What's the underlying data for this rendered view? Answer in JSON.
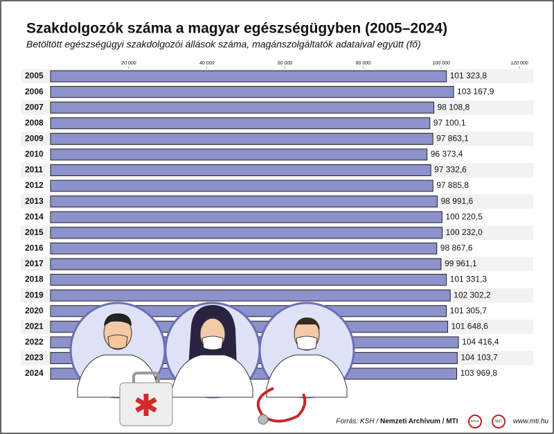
{
  "chart_data": {
    "type": "bar",
    "orientation": "horizontal",
    "title": "Szakdolgozók száma a magyar egészségügyben (2005–2024)",
    "subtitle": "Betöltött egészségügyi szakdolgozói állások száma, magánszolgáltatók adataival együtt (fő)",
    "categories": [
      "2005",
      "2006",
      "2007",
      "2008",
      "2009",
      "2010",
      "2011",
      "2012",
      "2013",
      "2014",
      "2015",
      "2016",
      "2017",
      "2018",
      "2019",
      "2020",
      "2021",
      "2022",
      "2023",
      "2024"
    ],
    "values": [
      101323.8,
      103167.9,
      98108.8,
      97100.1,
      97863.1,
      96373.4,
      97332.6,
      97885.8,
      98991.6,
      100220.5,
      100232.0,
      98867.6,
      99961.1,
      101331.3,
      102302.2,
      101305.7,
      101648.6,
      104416.4,
      104103.7,
      103969.8
    ],
    "value_labels": [
      "101 323,8",
      "103 167,9",
      "98 108,8",
      "97 100,1",
      "97 863,1",
      "96 373,4",
      "97 332,6",
      "97 885,8",
      "98 991,6",
      "100 220,5",
      "100 232,0",
      "98 867,6",
      "99 961,1",
      "101 331,3",
      "102 302,2",
      "101 305,7",
      "101 648,6",
      "104 416,4",
      "104 103,7",
      "103 969,8"
    ],
    "color": "#8d91cc",
    "xlim": [
      0,
      120000
    ],
    "xticks": [
      {
        "value": 20000,
        "label": "20 000"
      },
      {
        "value": 40000,
        "label": "40 000"
      },
      {
        "value": 60000,
        "label": "60 000"
      },
      {
        "value": 80000,
        "label": "80 000"
      },
      {
        "value": 100000,
        "label": "100 000"
      },
      {
        "value": 120000,
        "label": "120 000"
      }
    ],
    "grid": false
  },
  "footer": {
    "source": "Forrás: KSH /",
    "source_bold": "Nemzeti Archívum / MTI",
    "logos": [
      "MTVA",
      "MTI"
    ],
    "url": "www.mti.hu"
  }
}
